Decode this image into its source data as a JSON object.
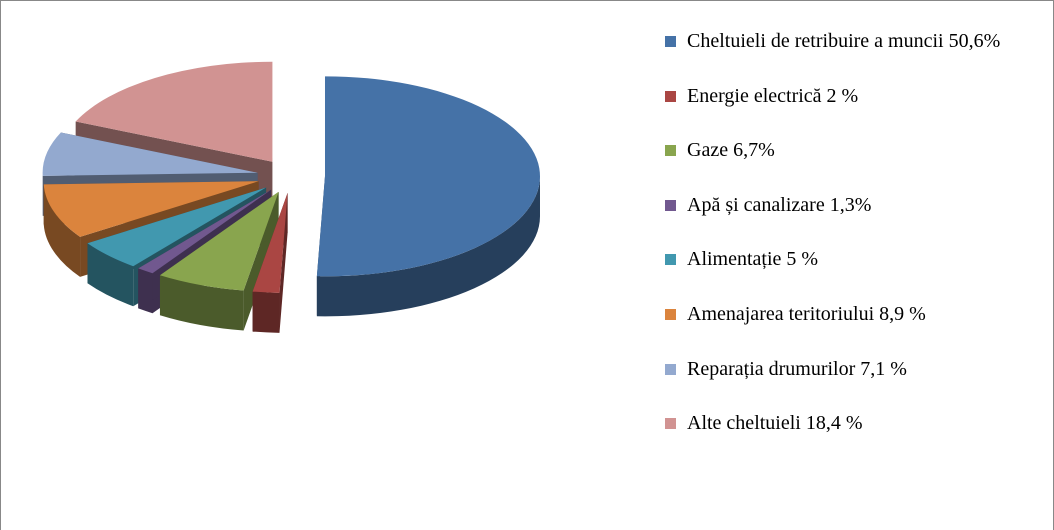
{
  "chart_data": {
    "type": "pie",
    "categories": [
      "Cheltuieli de retribuire a muncii 50,6%",
      "Energie electrică 2 %",
      "Gaze 6,7%",
      "Apă și canalizare 1,3%",
      "Alimentație 5 %",
      "Amenajarea teritoriului 8,9 %",
      "Reparația drumurilor 7,1 %",
      "Alte cheltuieli 18,4 %"
    ],
    "values": [
      50.6,
      2,
      6.7,
      1.3,
      5,
      8.9,
      7.1,
      18.4
    ],
    "colors": [
      "#4572a7",
      "#aa4643",
      "#89a54e",
      "#71588f",
      "#4198af",
      "#db843d",
      "#93a9cf",
      "#d19392"
    ],
    "legend": "right"
  }
}
